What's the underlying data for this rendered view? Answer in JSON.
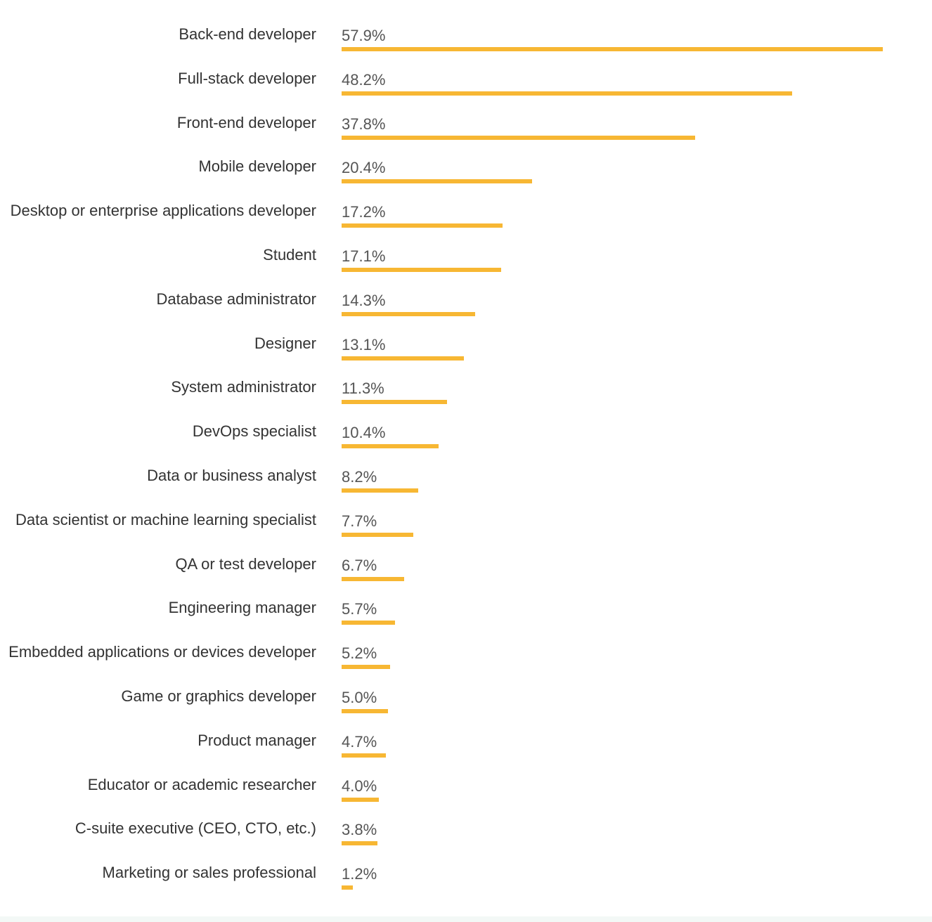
{
  "colors": {
    "bar": "#f7b733",
    "category_text": "#333333",
    "value_text": "#555555"
  },
  "chart_data": {
    "type": "bar",
    "orientation": "horizontal",
    "title": "",
    "xlabel": "",
    "ylabel": "",
    "unit": "%",
    "grid": false,
    "xlim": [
      0,
      57.9
    ],
    "categories": [
      "Back-end developer",
      "Full-stack developer",
      "Front-end developer",
      "Mobile developer",
      "Desktop or enterprise applications developer",
      "Student",
      "Database administrator",
      "Designer",
      "System administrator",
      "DevOps specialist",
      "Data or business analyst",
      "Data scientist or machine learning specialist",
      "QA or test developer",
      "Engineering manager",
      "Embedded applications or devices developer",
      "Game or graphics developer",
      "Product manager",
      "Educator or academic researcher",
      "C-suite executive (CEO, CTO, etc.)",
      "Marketing or sales professional"
    ],
    "values": [
      57.9,
      48.2,
      37.8,
      20.4,
      17.2,
      17.1,
      14.3,
      13.1,
      11.3,
      10.4,
      8.2,
      7.7,
      6.7,
      5.7,
      5.2,
      5.0,
      4.7,
      4.0,
      3.8,
      1.2
    ],
    "value_labels": [
      "57.9%",
      "48.2%",
      "37.8%",
      "20.4%",
      "17.2%",
      "17.1%",
      "14.3%",
      "13.1%",
      "11.3%",
      "10.4%",
      "8.2%",
      "7.7%",
      "6.7%",
      "5.7%",
      "5.2%",
      "5.0%",
      "4.7%",
      "4.0%",
      "3.8%",
      "1.2%"
    ]
  }
}
